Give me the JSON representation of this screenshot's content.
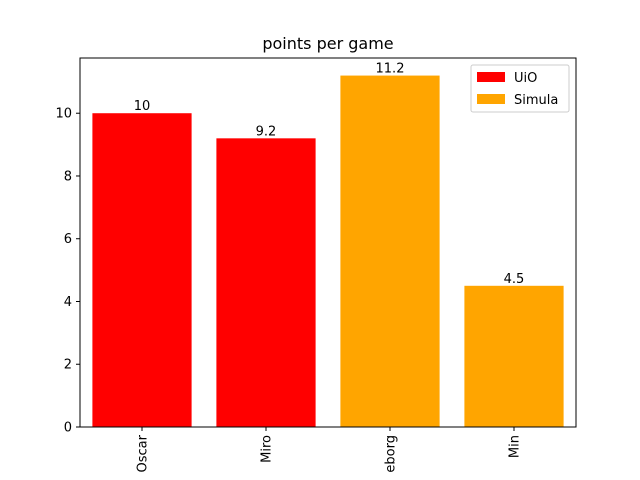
{
  "chart_data": {
    "type": "bar",
    "title": "points per game",
    "xlabel": "",
    "ylabel": "",
    "categories": [
      "Oscar",
      "Miro",
      "eborg",
      "Min"
    ],
    "values": [
      10,
      9.2,
      11.2,
      4.5
    ],
    "data_labels": [
      "10",
      "9.2",
      "11.2",
      "4.5"
    ],
    "bar_groups": [
      "UiO",
      "UiO",
      "Simula",
      "Simula"
    ],
    "series": [
      {
        "name": "UiO",
        "color": "#ff0000"
      },
      {
        "name": "Simula",
        "color": "#ffa500"
      }
    ],
    "ylim": [
      0,
      11.76
    ],
    "yticks": [
      0,
      2,
      4,
      6,
      8,
      10
    ],
    "ytick_labels": [
      "0",
      "2",
      "4",
      "6",
      "8",
      "10"
    ],
    "x_tick_rotation": "vertical",
    "grid": false,
    "legend_position": "top-right"
  }
}
